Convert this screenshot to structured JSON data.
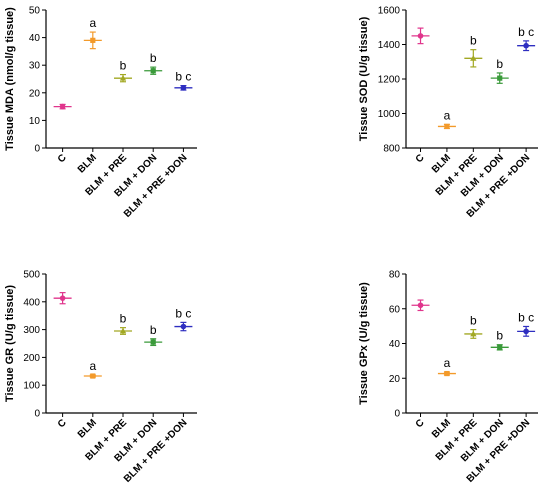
{
  "categories": [
    "C",
    "BLM",
    "BLM + PRE",
    "BLM + DON",
    "BLM + PRE +DON"
  ],
  "colors": [
    "#e0358c",
    "#f39a2a",
    "#a2a823",
    "#3a9a3a",
    "#2e2ec0"
  ],
  "chart_data": [
    {
      "type": "scatter",
      "ylabel": "Tissue MDA (nmol/g tissue)",
      "ylim": [
        0,
        50
      ],
      "yticks": [
        0,
        10,
        20,
        30,
        40,
        50
      ],
      "tick_labels": [
        "0",
        "10",
        "20",
        "30",
        "40",
        "50"
      ],
      "values": [
        15.0,
        39.0,
        25.3,
        28.0,
        21.8
      ],
      "errors": [
        0.8,
        3.0,
        1.3,
        1.3,
        0.8
      ],
      "annotations": [
        "",
        "a",
        "b",
        "b",
        "b c"
      ]
    },
    {
      "type": "scatter",
      "ylabel": "Tissue SOD (U/g tissue)",
      "ylim": [
        800,
        1600
      ],
      "yticks": [
        800,
        1000,
        1200,
        1400,
        1600
      ],
      "tick_labels": [
        "800",
        "1000",
        "1200",
        "1400",
        "1600"
      ],
      "values": [
        1450,
        925,
        1320,
        1205,
        1393
      ],
      "errors": [
        45,
        12,
        50,
        30,
        28
      ],
      "annotations": [
        "",
        "a",
        "b",
        "b",
        "b c"
      ]
    },
    {
      "type": "scatter",
      "ylabel": "Tissue GR (U/g tissue)",
      "ylim": [
        0,
        500
      ],
      "yticks": [
        0,
        100,
        200,
        300,
        400,
        500
      ],
      "tick_labels": [
        "0",
        "100",
        "200",
        "300",
        "400",
        "500"
      ],
      "values": [
        413,
        133,
        295,
        255,
        311
      ],
      "errors": [
        20,
        4,
        12,
        12,
        15
      ],
      "annotations": [
        "",
        "a",
        "b",
        "b",
        "b c"
      ]
    },
    {
      "type": "scatter",
      "ylabel": "Tissue GPx (U/g tissue)",
      "ylim": [
        0,
        80
      ],
      "yticks": [
        0,
        20,
        40,
        60,
        80
      ],
      "tick_labels": [
        "0",
        "20",
        "40",
        "60",
        "80"
      ],
      "values": [
        62.0,
        22.7,
        45.5,
        37.8,
        47.0
      ],
      "errors": [
        3.0,
        0.8,
        2.5,
        1.5,
        2.8
      ],
      "annotations": [
        "",
        "a",
        "b",
        "b",
        "b c"
      ]
    }
  ]
}
